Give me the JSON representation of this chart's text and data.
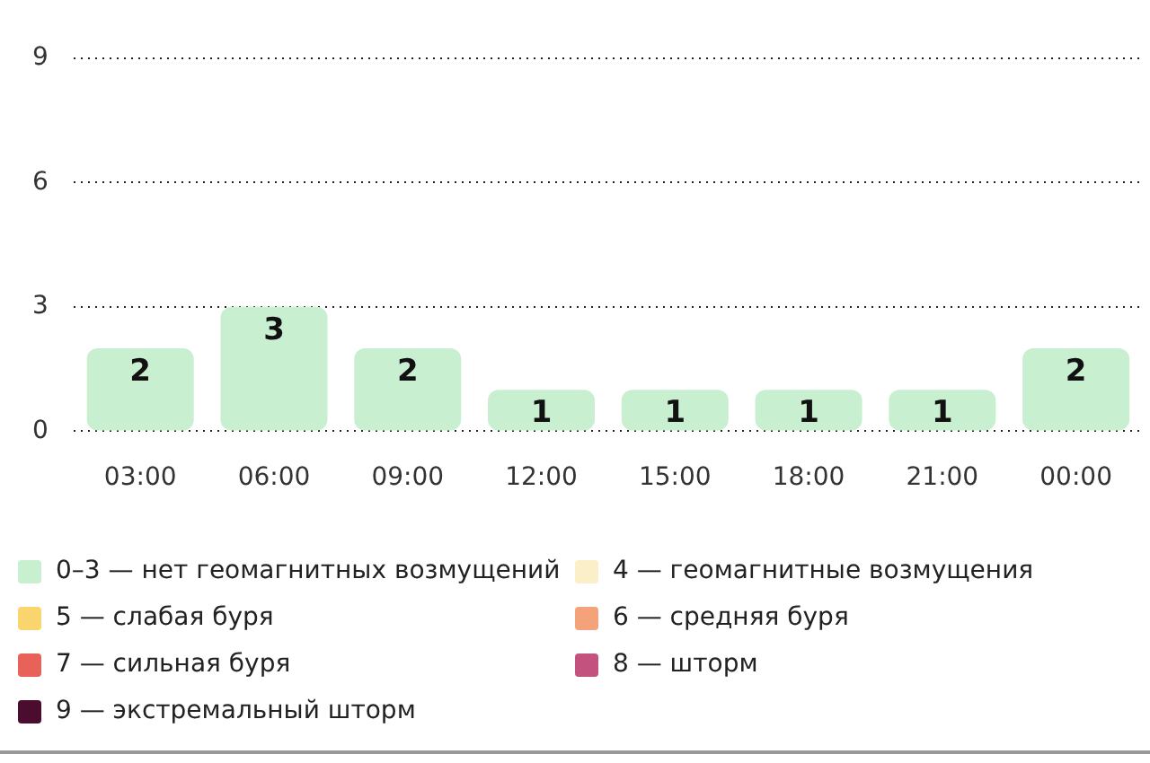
{
  "chart_data": {
    "type": "bar",
    "categories": [
      "03:00",
      "06:00",
      "09:00",
      "12:00",
      "15:00",
      "18:00",
      "21:00",
      "00:00"
    ],
    "stacked": true,
    "grid": "y",
    "line_style": "dotted",
    "legend": "bottom",
    "data_labels": true,
    "ylim": [
      0,
      9
    ],
    "yticks": [
      0,
      3,
      6,
      9
    ],
    "series": [
      {
        "name": "0–3 — нет геомагнитных возмущений",
        "color": "#c9efd1",
        "values": [
          2,
          3,
          2,
          1,
          1,
          1,
          1,
          2
        ]
      },
      {
        "name": "4 — геомагнитные возмущения",
        "color": "#fbefc9",
        "values": [
          null,
          null,
          null,
          null,
          null,
          null,
          null,
          null
        ]
      },
      {
        "name": "5 — слабая буря",
        "color": "#fad46c",
        "values": [
          null,
          null,
          null,
          null,
          null,
          null,
          null,
          null
        ]
      },
      {
        "name": "6 — средняя буря",
        "color": "#f4a27a",
        "values": [
          null,
          null,
          null,
          null,
          null,
          null,
          null,
          null
        ]
      },
      {
        "name": "7 — сильная буря",
        "color": "#e8625a",
        "values": [
          null,
          null,
          null,
          null,
          null,
          null,
          null,
          null
        ]
      },
      {
        "name": "8 — шторм",
        "color": "#c4527f",
        "values": [
          null,
          null,
          null,
          null,
          null,
          null,
          null,
          null
        ]
      },
      {
        "name": "9 — экстремальный шторм",
        "color": "#4a0d2e",
        "values": [
          null,
          null,
          null,
          null,
          null,
          null,
          null,
          null
        ]
      }
    ]
  }
}
